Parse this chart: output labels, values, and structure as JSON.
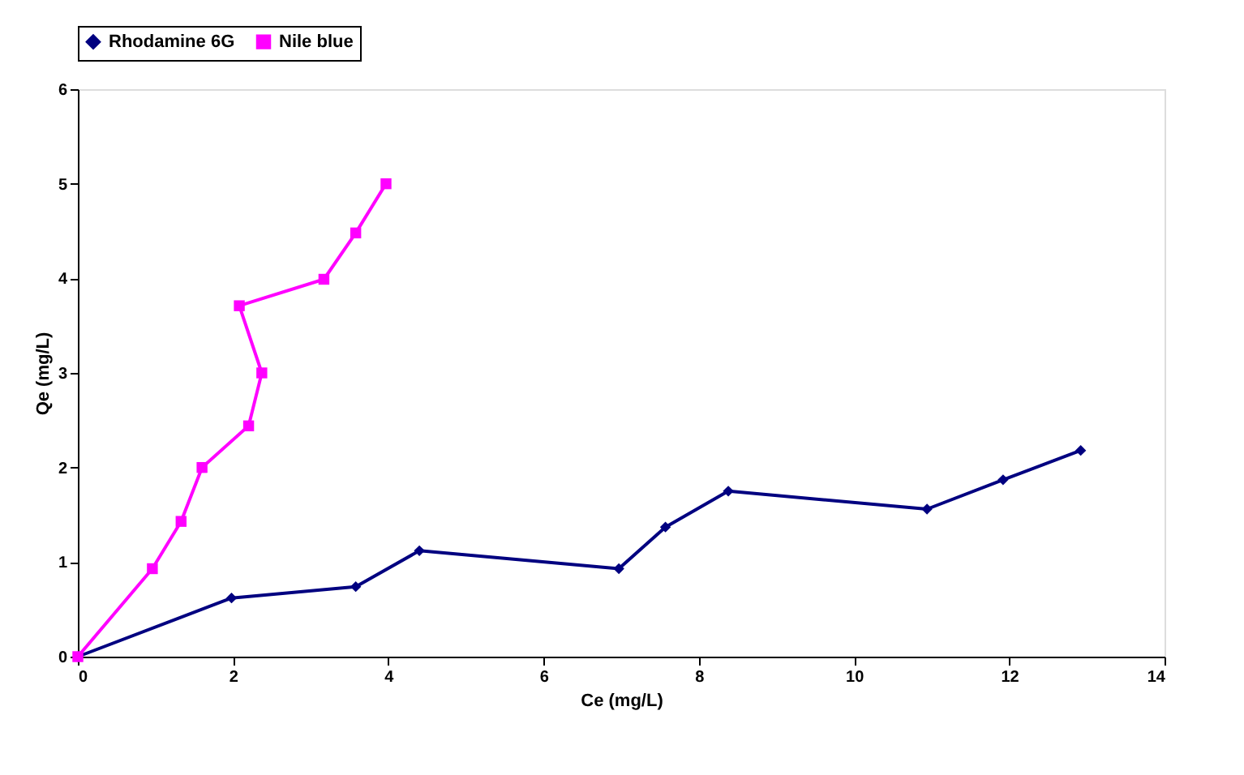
{
  "chart_data": {
    "type": "line",
    "xlabel": "Ce (mg/L)",
    "ylabel": "Qe (mg/L)",
    "xlim": [
      0,
      14
    ],
    "xticks": [
      0,
      2,
      4,
      6,
      8,
      10,
      12,
      14
    ],
    "ylim": [
      0,
      6
    ],
    "yticks": [
      0,
      1,
      2,
      3,
      4,
      5,
      6
    ],
    "grid": false,
    "legend": "top",
    "line_style": "solid",
    "series": [
      {
        "name": "Rhodamine 6G",
        "color": "#000080",
        "marker": "diamond",
        "x": [
          0,
          1.98,
          3.58,
          4.4,
          6.97,
          7.57,
          8.38,
          10.94,
          11.92,
          12.92
        ],
        "values": [
          0,
          0.62,
          0.74,
          1.12,
          0.93,
          1.37,
          1.75,
          1.56,
          1.87,
          2.18
        ]
      },
      {
        "name": "Nile blue",
        "color": "#ff00ff",
        "marker": "square",
        "x": [
          0,
          0.96,
          1.33,
          1.6,
          2.2,
          2.37,
          2.08,
          3.17,
          3.58,
          3.97
        ],
        "values": [
          0,
          0.93,
          1.43,
          2.0,
          2.44,
          3.0,
          3.71,
          3.99,
          4.48,
          5.0
        ]
      }
    ]
  }
}
